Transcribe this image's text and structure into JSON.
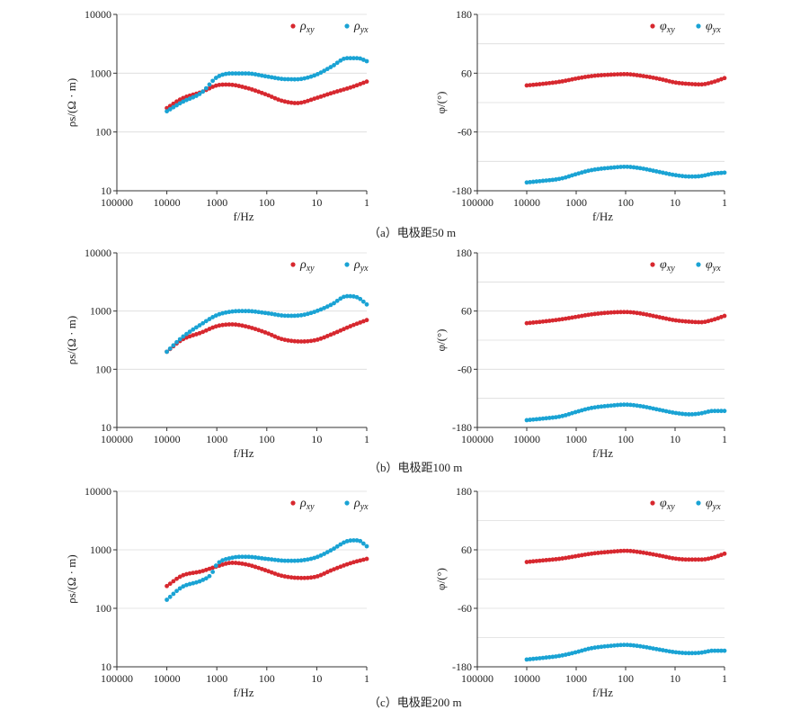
{
  "colors": {
    "xy": "#d7282f",
    "yx": "#1aa3d4",
    "grid": "#dcdcdc",
    "axis": "#333333"
  },
  "captions": [
    "（a）电极距50 m",
    "（b）电极距100 m",
    "（c）电极距200 m"
  ],
  "chart_data": [
    {
      "type": "scatter",
      "panel": "a-resistivity",
      "xlabel": "f/Hz",
      "ylabel": "ρs/(Ω · m)",
      "xscale": "log",
      "xreversed": true,
      "xlim": [
        100000,
        1
      ],
      "yscale": "log",
      "ylim": [
        10,
        10000
      ],
      "x_ticks": [
        "100000",
        "10000",
        "1000",
        "100",
        "10",
        "1"
      ],
      "y_ticks": [
        "10",
        "100",
        "1000",
        "10000"
      ],
      "grid": "horizontal",
      "legend": "top-right",
      "series": [
        {
          "name": "ρxy",
          "key": "xy",
          "sym": "ρ",
          "points": [
            [
              10000,
              255
            ],
            [
              5000,
              370
            ],
            [
              2000,
              480
            ],
            [
              1000,
              620
            ],
            [
              600,
              640
            ],
            [
              250,
              560
            ],
            [
              100,
              430
            ],
            [
              50,
              340
            ],
            [
              25,
              310
            ],
            [
              10,
              380
            ],
            [
              5,
              460
            ],
            [
              2,
              580
            ],
            [
              1,
              720
            ]
          ]
        },
        {
          "name": "ρyx",
          "key": "yx",
          "sym": "ρ",
          "points": [
            [
              10000,
              225
            ],
            [
              5000,
              320
            ],
            [
              2000,
              470
            ],
            [
              1000,
              850
            ],
            [
              500,
              990
            ],
            [
              250,
              990
            ],
            [
              100,
              880
            ],
            [
              40,
              790
            ],
            [
              20,
              800
            ],
            [
              10,
              950
            ],
            [
              5,
              1300
            ],
            [
              2.5,
              1800
            ],
            [
              1.5,
              1800
            ],
            [
              1,
              1600
            ]
          ]
        }
      ]
    },
    {
      "type": "scatter",
      "panel": "a-phase",
      "xlabel": "f/Hz",
      "ylabel": "φ/(°)",
      "xscale": "log",
      "xreversed": true,
      "xlim": [
        100000,
        1
      ],
      "ylim": [
        -180,
        180
      ],
      "x_ticks": [
        "100000",
        "10000",
        "1000",
        "100",
        "10",
        "1"
      ],
      "y_ticks": [
        "180",
        "60",
        "-60",
        "-180"
      ],
      "grid": "horizontal",
      "legend": "top-right",
      "series": [
        {
          "name": "φxy",
          "key": "xy",
          "sym": "φ",
          "points": [
            [
              10000,
              35
            ],
            [
              5000,
              38
            ],
            [
              2000,
              43
            ],
            [
              1000,
              49
            ],
            [
              500,
              54
            ],
            [
              200,
              57
            ],
            [
              100,
              58
            ],
            [
              50,
              55
            ],
            [
              20,
              48
            ],
            [
              10,
              41
            ],
            [
              5,
              38
            ],
            [
              3,
              37
            ],
            [
              1.7,
              42
            ],
            [
              1,
              50
            ]
          ]
        },
        {
          "name": "φyx",
          "key": "yx",
          "sym": "φ",
          "points": [
            [
              10000,
              -163
            ],
            [
              5000,
              -160
            ],
            [
              2000,
              -155
            ],
            [
              1000,
              -146
            ],
            [
              500,
              -138
            ],
            [
              200,
              -133
            ],
            [
              100,
              -131
            ],
            [
              50,
              -134
            ],
            [
              20,
              -142
            ],
            [
              10,
              -148
            ],
            [
              5,
              -151
            ],
            [
              3,
              -150
            ],
            [
              1.7,
              -145
            ],
            [
              1,
              -143
            ]
          ]
        }
      ]
    },
    {
      "type": "scatter",
      "panel": "b-resistivity",
      "xlabel": "f/Hz",
      "ylabel": "ρs/(Ω · m)",
      "xscale": "log",
      "xreversed": true,
      "xlim": [
        100000,
        1
      ],
      "yscale": "log",
      "ylim": [
        10,
        10000
      ],
      "x_ticks": [
        "100000",
        "10000",
        "1000",
        "100",
        "10",
        "1"
      ],
      "y_ticks": [
        "10",
        "100",
        "1000",
        "10000"
      ],
      "grid": "horizontal",
      "legend": "top-right",
      "series": [
        {
          "name": "ρxy",
          "key": "xy",
          "sym": "ρ",
          "points": [
            [
              10000,
              200
            ],
            [
              5000,
              320
            ],
            [
              2000,
              430
            ],
            [
              1000,
              550
            ],
            [
              500,
              590
            ],
            [
              250,
              540
            ],
            [
              100,
              420
            ],
            [
              50,
              330
            ],
            [
              20,
              300
            ],
            [
              10,
              320
            ],
            [
              5,
              400
            ],
            [
              2,
              560
            ],
            [
              1,
              700
            ]
          ]
        },
        {
          "name": "ρyx",
          "key": "yx",
          "sym": "ρ",
          "points": [
            [
              10000,
              200
            ],
            [
              5000,
              350
            ],
            [
              2000,
              600
            ],
            [
              1000,
              850
            ],
            [
              500,
              980
            ],
            [
              250,
              1000
            ],
            [
              100,
              920
            ],
            [
              40,
              830
            ],
            [
              20,
              850
            ],
            [
              10,
              1000
            ],
            [
              5,
              1300
            ],
            [
              2.5,
              1800
            ],
            [
              1.5,
              1700
            ],
            [
              1,
              1300
            ]
          ]
        }
      ]
    },
    {
      "type": "scatter",
      "panel": "b-phase",
      "xlabel": "f/Hz",
      "ylabel": "φ/(°)",
      "xscale": "log",
      "xreversed": true,
      "xlim": [
        100000,
        1
      ],
      "ylim": [
        -180,
        180
      ],
      "x_ticks": [
        "100000",
        "10000",
        "1000",
        "100",
        "10",
        "1"
      ],
      "y_ticks": [
        "180",
        "60",
        "-60",
        "-180"
      ],
      "grid": "horizontal",
      "legend": "top-right",
      "series": [
        {
          "name": "φxy",
          "key": "xy",
          "sym": "φ",
          "points": [
            [
              10000,
              35
            ],
            [
              5000,
              38
            ],
            [
              2000,
              43
            ],
            [
              1000,
              48
            ],
            [
              500,
              53
            ],
            [
              200,
              57
            ],
            [
              100,
              58
            ],
            [
              50,
              55
            ],
            [
              20,
              47
            ],
            [
              10,
              41
            ],
            [
              5,
              38
            ],
            [
              3,
              37
            ],
            [
              1.7,
              42
            ],
            [
              1,
              50
            ]
          ]
        },
        {
          "name": "φyx",
          "key": "yx",
          "sym": "φ",
          "points": [
            [
              10000,
              -165
            ],
            [
              5000,
              -162
            ],
            [
              2000,
              -157
            ],
            [
              1000,
              -148
            ],
            [
              500,
              -140
            ],
            [
              200,
              -135
            ],
            [
              100,
              -133
            ],
            [
              50,
              -136
            ],
            [
              20,
              -144
            ],
            [
              10,
              -150
            ],
            [
              5,
              -153
            ],
            [
              3,
              -151
            ],
            [
              1.7,
              -146
            ],
            [
              1,
              -146
            ]
          ]
        }
      ]
    },
    {
      "type": "scatter",
      "panel": "c-resistivity",
      "xlabel": "f/Hz",
      "ylabel": "ρs/(Ω · m)",
      "xscale": "log",
      "xreversed": true,
      "xlim": [
        100000,
        1
      ],
      "yscale": "log",
      "ylim": [
        10,
        10000
      ],
      "x_ticks": [
        "100000",
        "10000",
        "1000",
        "100",
        "10",
        "1"
      ],
      "y_ticks": [
        "10",
        "100",
        "1000",
        "10000"
      ],
      "grid": "horizontal",
      "legend": "top-right",
      "series": [
        {
          "name": "ρxy",
          "key": "xy",
          "sym": "ρ",
          "points": [
            [
              10000,
              240
            ],
            [
              5000,
              360
            ],
            [
              2000,
              430
            ],
            [
              1000,
              520
            ],
            [
              500,
              600
            ],
            [
              250,
              560
            ],
            [
              100,
              440
            ],
            [
              50,
              360
            ],
            [
              20,
              330
            ],
            [
              10,
              350
            ],
            [
              5,
              450
            ],
            [
              2,
              600
            ],
            [
              1,
              700
            ]
          ]
        },
        {
          "name": "ρyx",
          "key": "yx",
          "sym": "ρ",
          "points": [
            [
              10000,
              140
            ],
            [
              5000,
              230
            ],
            [
              2000,
              300
            ],
            [
              1300,
              380
            ],
            [
              1000,
              560
            ],
            [
              500,
              730
            ],
            [
              250,
              760
            ],
            [
              100,
              700
            ],
            [
              40,
              650
            ],
            [
              20,
              660
            ],
            [
              10,
              750
            ],
            [
              5,
              1000
            ],
            [
              2.5,
              1400
            ],
            [
              1.5,
              1450
            ],
            [
              1,
              1150
            ]
          ]
        }
      ]
    },
    {
      "type": "scatter",
      "panel": "c-phase",
      "xlabel": "f/Hz",
      "ylabel": "φ/(°)",
      "xscale": "log",
      "xreversed": true,
      "xlim": [
        100000,
        1
      ],
      "ylim": [
        -180,
        180
      ],
      "x_ticks": [
        "100000",
        "10000",
        "1000",
        "100",
        "10",
        "1"
      ],
      "y_ticks": [
        "180",
        "60",
        "-60",
        "-180"
      ],
      "grid": "horizontal",
      "legend": "top-right",
      "series": [
        {
          "name": "φxy",
          "key": "xy",
          "sym": "φ",
          "points": [
            [
              10000,
              35
            ],
            [
              5000,
              38
            ],
            [
              2000,
              42
            ],
            [
              1000,
              47
            ],
            [
              500,
              52
            ],
            [
              200,
              56
            ],
            [
              100,
              58
            ],
            [
              50,
              55
            ],
            [
              20,
              48
            ],
            [
              10,
              42
            ],
            [
              5,
              40
            ],
            [
              3,
              40
            ],
            [
              1.7,
              44
            ],
            [
              1,
              52
            ]
          ]
        },
        {
          "name": "φyx",
          "key": "yx",
          "sym": "φ",
          "points": [
            [
              10000,
              -165
            ],
            [
              5000,
              -162
            ],
            [
              2000,
              -157
            ],
            [
              1000,
              -150
            ],
            [
              500,
              -142
            ],
            [
              200,
              -137
            ],
            [
              100,
              -135
            ],
            [
              50,
              -138
            ],
            [
              20,
              -145
            ],
            [
              10,
              -150
            ],
            [
              5,
              -152
            ],
            [
              3,
              -151
            ],
            [
              1.7,
              -147
            ],
            [
              1,
              -147
            ]
          ]
        }
      ]
    }
  ]
}
